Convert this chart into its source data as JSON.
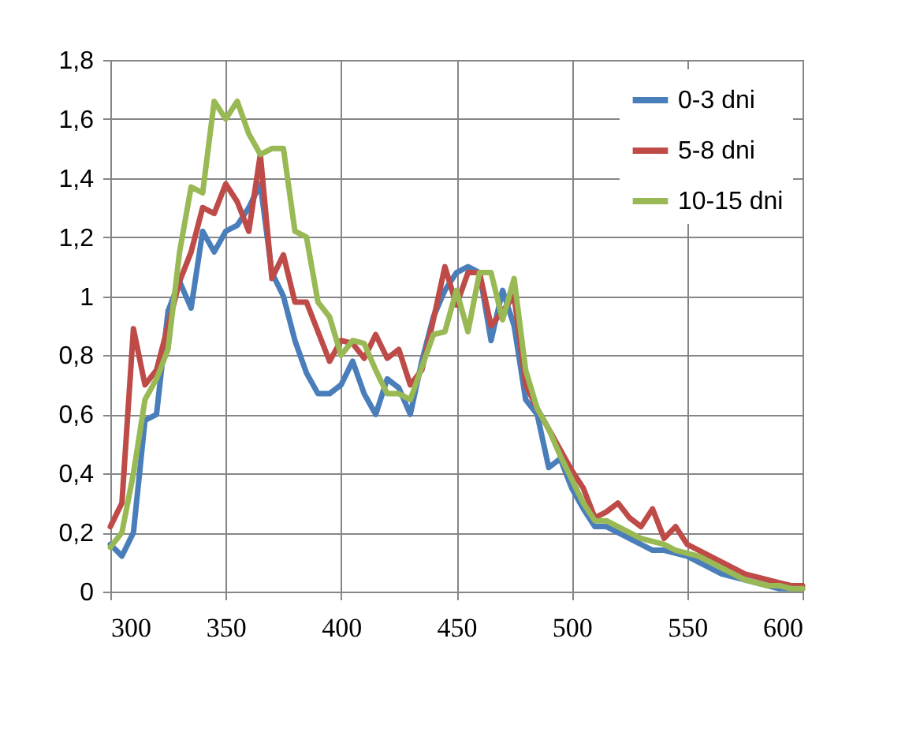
{
  "chart_data": {
    "type": "line",
    "x": [
      300,
      305,
      310,
      315,
      320,
      325,
      330,
      335,
      340,
      345,
      350,
      355,
      360,
      365,
      370,
      375,
      380,
      385,
      390,
      395,
      400,
      405,
      410,
      415,
      420,
      425,
      430,
      435,
      440,
      445,
      450,
      455,
      460,
      465,
      470,
      475,
      480,
      485,
      490,
      495,
      500,
      505,
      510,
      515,
      520,
      525,
      530,
      535,
      540,
      545,
      550,
      555,
      560,
      565,
      570,
      575,
      580,
      585,
      590,
      595,
      600
    ],
    "series": [
      {
        "name": "0-3 dni",
        "color": "#4a7ebb",
        "values": [
          0.16,
          0.12,
          0.2,
          0.58,
          0.6,
          0.95,
          1.05,
          0.96,
          1.22,
          1.15,
          1.22,
          1.24,
          1.3,
          1.38,
          1.08,
          1.0,
          0.85,
          0.74,
          0.67,
          0.67,
          0.7,
          0.78,
          0.67,
          0.6,
          0.72,
          0.69,
          0.6,
          0.78,
          0.93,
          1.02,
          1.08,
          1.1,
          1.08,
          0.85,
          1.02,
          0.9,
          0.65,
          0.6,
          0.42,
          0.45,
          0.35,
          0.28,
          0.22,
          0.22,
          0.2,
          0.18,
          0.16,
          0.14,
          0.14,
          0.13,
          0.12,
          0.1,
          0.08,
          0.06,
          0.05,
          0.04,
          0.03,
          0.02,
          0.01,
          0.01,
          0.01
        ]
      },
      {
        "name": "5-8 dni",
        "color": "#be4b48",
        "values": [
          0.22,
          0.3,
          0.89,
          0.7,
          0.75,
          0.9,
          1.05,
          1.15,
          1.3,
          1.28,
          1.38,
          1.32,
          1.22,
          1.48,
          1.06,
          1.14,
          0.98,
          0.98,
          0.88,
          0.78,
          0.85,
          0.84,
          0.79,
          0.87,
          0.79,
          0.82,
          0.7,
          0.75,
          0.92,
          1.1,
          0.97,
          1.08,
          1.08,
          0.9,
          0.95,
          1.0,
          0.7,
          0.62,
          0.55,
          0.48,
          0.41,
          0.35,
          0.25,
          0.27,
          0.3,
          0.25,
          0.22,
          0.28,
          0.18,
          0.22,
          0.16,
          0.14,
          0.12,
          0.1,
          0.08,
          0.06,
          0.05,
          0.04,
          0.03,
          0.02,
          0.02
        ]
      },
      {
        "name": "10-15 dni",
        "color": "#98b954",
        "values": [
          0.15,
          0.2,
          0.4,
          0.65,
          0.72,
          0.82,
          1.15,
          1.37,
          1.35,
          1.66,
          1.6,
          1.66,
          1.55,
          1.48,
          1.5,
          1.5,
          1.22,
          1.2,
          0.98,
          0.93,
          0.8,
          0.85,
          0.84,
          0.75,
          0.67,
          0.67,
          0.65,
          0.76,
          0.87,
          0.88,
          1.02,
          0.88,
          1.08,
          1.08,
          0.92,
          1.06,
          0.75,
          0.62,
          0.55,
          0.46,
          0.38,
          0.3,
          0.24,
          0.24,
          0.22,
          0.2,
          0.18,
          0.17,
          0.16,
          0.14,
          0.13,
          0.12,
          0.1,
          0.08,
          0.06,
          0.04,
          0.03,
          0.02,
          0.02,
          0.01,
          0.01
        ]
      }
    ],
    "xlim": [
      300,
      600
    ],
    "xticks": [
      300,
      350,
      400,
      450,
      500,
      550,
      600
    ],
    "ylim": [
      0,
      1.8
    ],
    "yticks": [
      {
        "value": 0,
        "label": "0"
      },
      {
        "value": 0.2,
        "label": "0,2"
      },
      {
        "value": 0.4,
        "label": "0,4"
      },
      {
        "value": 0.6,
        "label": "0,6"
      },
      {
        "value": 0.8,
        "label": "0,8"
      },
      {
        "value": 1,
        "label": "1"
      },
      {
        "value": 1.2,
        "label": "1,2"
      },
      {
        "value": 1.4,
        "label": "1,4"
      },
      {
        "value": 1.6,
        "label": "1,6"
      },
      {
        "value": 1.8,
        "label": "1,8"
      }
    ],
    "grid": true,
    "legend": "top right",
    "marker": "none",
    "line_style": "solid"
  }
}
